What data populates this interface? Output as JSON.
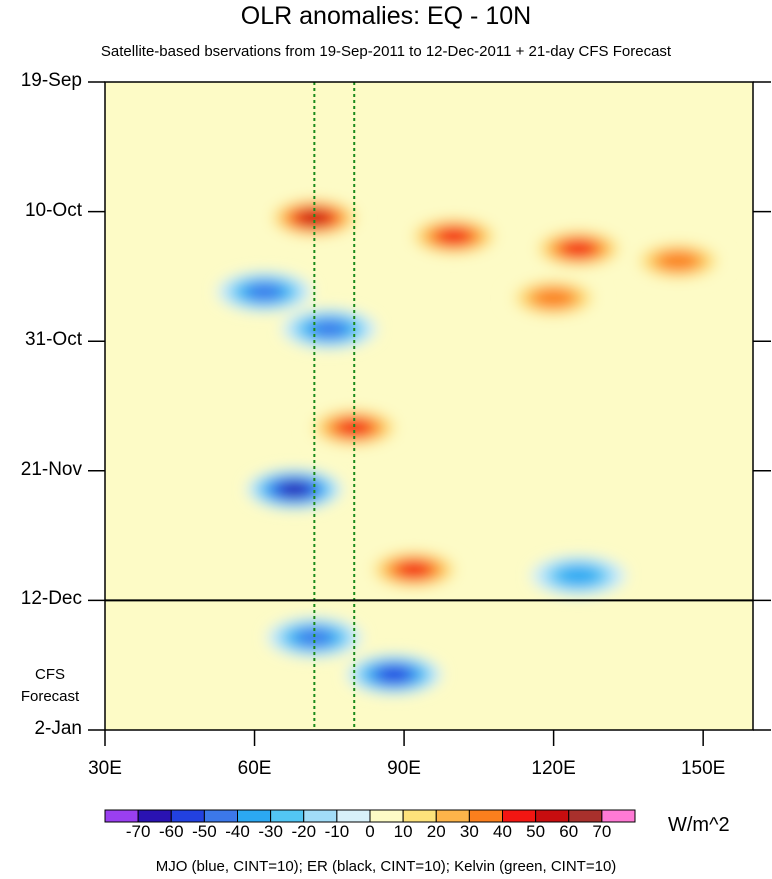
{
  "chart_data": {
    "type": "heatmap",
    "title": "OLR anomalies: EQ - 10N",
    "subtitle": "Satellite-based bservations from 19-Sep-2011 to 12-Dec-2011 + 21-day CFS Forecast",
    "x_axis": {
      "ticks": [
        "30E",
        "60E",
        "90E",
        "120E",
        "150E"
      ],
      "tick_values": [
        30,
        60,
        90,
        120,
        150
      ],
      "range": [
        30,
        160
      ]
    },
    "y_axis": {
      "ticks": [
        "19-Sep",
        "10-Oct",
        "31-Oct",
        "21-Nov",
        "12-Dec",
        "2-Jan"
      ],
      "range": [
        "19-Sep-2011",
        "2-Jan-2012"
      ]
    },
    "forecast_note": [
      "CFS",
      "Forecast"
    ],
    "forecast_boundary": "12-Dec",
    "colorbar": {
      "labels": [
        "-70",
        "-60",
        "-50",
        "-40",
        "-30",
        "-20",
        "-10",
        "0",
        "10",
        "20",
        "30",
        "40",
        "50",
        "60",
        "70"
      ],
      "colors": [
        "#9a3ff0",
        "#2a12b2",
        "#2241e0",
        "#3c78ea",
        "#2ba8f2",
        "#52c6f4",
        "#a2ddf8",
        "#d8f1fa",
        "#fdfbc6",
        "#fde27b",
        "#fdb44a",
        "#fb7f1d",
        "#f31612",
        "#c80d0f",
        "#a8302c",
        "#ff7ad5"
      ],
      "units": "W/m^2"
    },
    "reference_lines": [
      {
        "lon": 72,
        "color": "#1a8a1a",
        "style": "dotted"
      },
      {
        "lon": 80,
        "color": "#1a8a1a",
        "style": "dotted"
      }
    ],
    "contour_legend": "MJO (blue, CINT=10); ER (black, CINT=10); Kelvin (green, CINT=10)",
    "anomaly_features": [
      {
        "lon": 72,
        "date": "11-Oct",
        "value": 60
      },
      {
        "lon": 100,
        "date": "14-Oct",
        "value": 50
      },
      {
        "lon": 125,
        "date": "16-Oct",
        "value": 50
      },
      {
        "lon": 145,
        "date": "18-Oct",
        "value": 40
      },
      {
        "lon": 62,
        "date": "23-Oct",
        "value": -50
      },
      {
        "lon": 75,
        "date": "29-Oct",
        "value": -50
      },
      {
        "lon": 120,
        "date": "24-Oct",
        "value": 40
      },
      {
        "lon": 80,
        "date": "14-Nov",
        "value": 50
      },
      {
        "lon": 68,
        "date": "24-Nov",
        "value": -70
      },
      {
        "lon": 92,
        "date": "7-Dec",
        "value": 50
      },
      {
        "lon": 125,
        "date": "8-Dec",
        "value": -40
      },
      {
        "lon": 72,
        "date": "18-Dec",
        "value": -50
      },
      {
        "lon": 88,
        "date": "24-Dec",
        "value": -60
      }
    ]
  }
}
